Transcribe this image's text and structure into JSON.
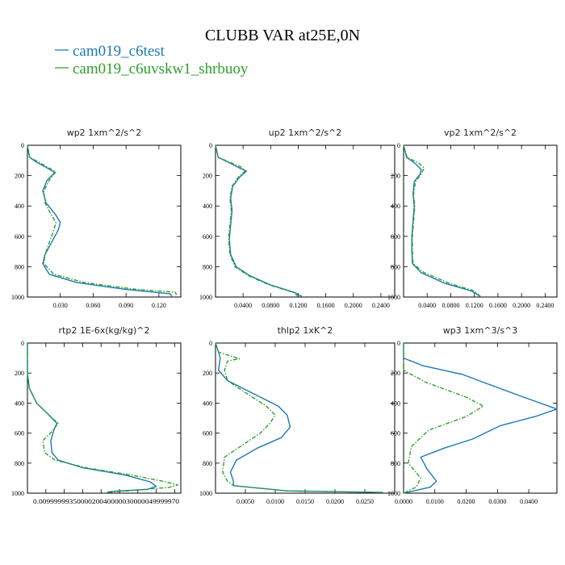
{
  "figure": {
    "title": "CLUBB VAR at25E,0N",
    "legend": [
      {
        "label": "cam019_c6test",
        "color": "#1f77b4",
        "dash": "solid"
      },
      {
        "label": "cam019_c6uvskw1_shrbuoy",
        "color": "#2ca02c",
        "dash": "dashdot"
      }
    ]
  },
  "chart_data": [
    {
      "type": "line",
      "title": "wp2  1xm^2/s^2",
      "ylim": [
        1000,
        0
      ],
      "yticks": [
        0,
        200,
        400,
        600,
        800,
        1000
      ],
      "xlim": [
        0,
        0.14
      ],
      "xticks": [
        0.03,
        0.06,
        0.09,
        0.12
      ],
      "xtick_labels": [
        "0.030",
        "0.060",
        "0.090",
        "0.120"
      ],
      "series": [
        {
          "name": "cam019_c6test",
          "color": "#1f77b4",
          "points": [
            [
              0.0,
              0
            ],
            [
              0.002,
              80
            ],
            [
              0.008,
              110
            ],
            [
              0.018,
              150
            ],
            [
              0.025,
              180
            ],
            [
              0.018,
              230
            ],
            [
              0.014,
              300
            ],
            [
              0.017,
              380
            ],
            [
              0.026,
              460
            ],
            [
              0.03,
              510
            ],
            [
              0.028,
              560
            ],
            [
              0.022,
              640
            ],
            [
              0.016,
              720
            ],
            [
              0.014,
              780
            ],
            [
              0.02,
              850
            ],
            [
              0.045,
              905
            ],
            [
              0.09,
              950
            ],
            [
              0.13,
              978
            ],
            [
              0.132,
              995
            ]
          ]
        },
        {
          "name": "cam019_c6uvskw1_shrbuoy",
          "color": "#2ca02c",
          "points": [
            [
              0.0,
              0
            ],
            [
              0.002,
              80
            ],
            [
              0.01,
              110
            ],
            [
              0.02,
              150
            ],
            [
              0.026,
              175
            ],
            [
              0.02,
              230
            ],
            [
              0.015,
              300
            ],
            [
              0.016,
              380
            ],
            [
              0.022,
              460
            ],
            [
              0.026,
              510
            ],
            [
              0.024,
              560
            ],
            [
              0.02,
              640
            ],
            [
              0.016,
              720
            ],
            [
              0.015,
              780
            ],
            [
              0.024,
              850
            ],
            [
              0.052,
              905
            ],
            [
              0.1,
              950
            ],
            [
              0.135,
              968
            ],
            [
              0.136,
              985
            ]
          ]
        }
      ]
    },
    {
      "type": "line",
      "title": "up2  1xm^2/s^2",
      "ylim": [
        1000,
        0
      ],
      "yticks": [
        0,
        200,
        400,
        600,
        800,
        1000
      ],
      "xlim": [
        0,
        0.26
      ],
      "xticks": [
        0.04,
        0.08,
        0.12,
        0.16,
        0.2,
        0.24
      ],
      "xtick_labels": [
        "0.0400",
        "0.0800",
        "0.1200",
        "0.1600",
        "0.2000",
        "0.2400"
      ],
      "series": [
        {
          "name": "cam019_c6test",
          "color": "#1f77b4",
          "points": [
            [
              0.0,
              0
            ],
            [
              0.004,
              80
            ],
            [
              0.02,
              115
            ],
            [
              0.035,
              150
            ],
            [
              0.045,
              170
            ],
            [
              0.035,
              210
            ],
            [
              0.025,
              270
            ],
            [
              0.022,
              350
            ],
            [
              0.024,
              430
            ],
            [
              0.022,
              520
            ],
            [
              0.02,
              620
            ],
            [
              0.022,
              720
            ],
            [
              0.03,
              800
            ],
            [
              0.05,
              860
            ],
            [
              0.08,
              920
            ],
            [
              0.115,
              970
            ],
            [
              0.125,
              995
            ]
          ]
        },
        {
          "name": "cam019_c6uvskw1_shrbuoy",
          "color": "#2ca02c",
          "points": [
            [
              0.0,
              0
            ],
            [
              0.004,
              80
            ],
            [
              0.02,
              110
            ],
            [
              0.038,
              145
            ],
            [
              0.043,
              170
            ],
            [
              0.033,
              210
            ],
            [
              0.024,
              270
            ],
            [
              0.021,
              350
            ],
            [
              0.023,
              430
            ],
            [
              0.021,
              520
            ],
            [
              0.019,
              620
            ],
            [
              0.021,
              720
            ],
            [
              0.028,
              800
            ],
            [
              0.048,
              860
            ],
            [
              0.078,
              920
            ],
            [
              0.113,
              970
            ],
            [
              0.12,
              995
            ]
          ]
        }
      ]
    },
    {
      "type": "line",
      "title": "vp2  1xm^2/s^2",
      "ylim": [
        1000,
        0
      ],
      "yticks": [
        0,
        200,
        400,
        600,
        800,
        1000
      ],
      "xlim": [
        0,
        0.26
      ],
      "xticks": [
        0.04,
        0.08,
        0.12,
        0.16,
        0.2,
        0.24
      ],
      "xtick_labels": [
        "0.0400",
        "0.0800",
        "0.1200",
        "0.1600",
        "0.2000",
        "0.2400"
      ],
      "series": [
        {
          "name": "cam019_c6test",
          "color": "#1f77b4",
          "points": [
            [
              0.0,
              0
            ],
            [
              0.005,
              80
            ],
            [
              0.02,
              120
            ],
            [
              0.03,
              160
            ],
            [
              0.028,
              190
            ],
            [
              0.018,
              240
            ],
            [
              0.016,
              320
            ],
            [
              0.018,
              400
            ],
            [
              0.016,
              500
            ],
            [
              0.014,
              600
            ],
            [
              0.014,
              700
            ],
            [
              0.015,
              780
            ],
            [
              0.03,
              840
            ],
            [
              0.07,
              910
            ],
            [
              0.115,
              960
            ],
            [
              0.13,
              995
            ]
          ]
        },
        {
          "name": "cam019_c6uvskw1_shrbuoy",
          "color": "#2ca02c",
          "points": [
            [
              0.0,
              0
            ],
            [
              0.006,
              80
            ],
            [
              0.025,
              115
            ],
            [
              0.035,
              150
            ],
            [
              0.03,
              190
            ],
            [
              0.02,
              240
            ],
            [
              0.017,
              320
            ],
            [
              0.019,
              400
            ],
            [
              0.017,
              500
            ],
            [
              0.015,
              600
            ],
            [
              0.015,
              700
            ],
            [
              0.016,
              780
            ],
            [
              0.035,
              840
            ],
            [
              0.078,
              910
            ],
            [
              0.12,
              960
            ],
            [
              0.13,
              995
            ]
          ]
        }
      ]
    },
    {
      "type": "line",
      "title": "rtp2  1E-6x(kg/kg)^2",
      "ylim": [
        1000,
        0
      ],
      "yticks": [
        0,
        200,
        400,
        600,
        800,
        1000
      ],
      "xlim": [
        0,
        25
      ],
      "xticks": [
        3,
        6,
        9,
        12,
        15,
        18,
        21,
        24
      ],
      "xtick_labels": [
        "0.00999999",
        "0.0000003",
        "0.0000002",
        "0.0000002",
        "0.0000002",
        "0.00000003",
        "0.00000003",
        "0.0000003"
      ],
      "tick_label_text": "0.0099999935000020040000030000049999970",
      "series": [
        {
          "name": "cam019_c6test",
          "color": "#1f77b4",
          "points": [
            [
              0.0,
              0
            ],
            [
              0.0,
              200
            ],
            [
              0.3,
              300
            ],
            [
              1.5,
              400
            ],
            [
              3.5,
              480
            ],
            [
              4.8,
              535
            ],
            [
              4.3,
              580
            ],
            [
              3.8,
              650
            ],
            [
              4.0,
              730
            ],
            [
              5.0,
              780
            ],
            [
              9.0,
              830
            ],
            [
              16.0,
              880
            ],
            [
              20.0,
              925
            ],
            [
              21.0,
              955
            ],
            [
              19.5,
              975
            ],
            [
              15.0,
              985
            ],
            [
              13.5,
              990
            ],
            [
              13.0,
              995
            ]
          ]
        },
        {
          "name": "cam019_c6uvskw1_shrbuoy",
          "color": "#2ca02c",
          "points": [
            [
              0.0,
              0
            ],
            [
              0.0,
              200
            ],
            [
              0.3,
              300
            ],
            [
              1.5,
              400
            ],
            [
              3.5,
              480
            ],
            [
              5.0,
              535
            ],
            [
              4.0,
              590
            ],
            [
              2.5,
              650
            ],
            [
              2.8,
              730
            ],
            [
              4.5,
              780
            ],
            [
              9.5,
              830
            ],
            [
              17.0,
              880
            ],
            [
              22.0,
              920
            ],
            [
              24.5,
              945
            ],
            [
              23.0,
              962
            ],
            [
              19.0,
              975
            ],
            [
              16.5,
              985
            ],
            [
              13.0,
              995
            ]
          ]
        }
      ]
    },
    {
      "type": "line",
      "title": "thlp2  1xK^2",
      "ylim": [
        1000,
        0
      ],
      "yticks": [
        0,
        200,
        400,
        600,
        800,
        1000
      ],
      "xlim": [
        0,
        0.03
      ],
      "xticks": [
        0.005,
        0.01,
        0.015,
        0.02,
        0.025
      ],
      "xtick_labels": [
        "0.0050",
        "0.0100",
        "0.0150",
        "0.0200",
        "0.0250"
      ],
      "series": [
        {
          "name": "cam019_c6test",
          "color": "#1f77b4",
          "points": [
            [
              0.0,
              0
            ],
            [
              0.0005,
              60
            ],
            [
              0.0008,
              100
            ],
            [
              0.0005,
              180
            ],
            [
              0.002,
              250
            ],
            [
              0.006,
              330
            ],
            [
              0.0105,
              420
            ],
            [
              0.012,
              480
            ],
            [
              0.0125,
              560
            ],
            [
              0.011,
              630
            ],
            [
              0.007,
              700
            ],
            [
              0.0035,
              780
            ],
            [
              0.0025,
              860
            ],
            [
              0.003,
              920
            ],
            [
              0.003,
              950
            ],
            [
              0.012,
              985
            ],
            [
              0.028,
              995
            ]
          ]
        },
        {
          "name": "cam019_c6uvskw1_shrbuoy",
          "color": "#2ca02c",
          "points": [
            [
              0.0,
              0
            ],
            [
              0.0005,
              60
            ],
            [
              0.004,
              105
            ],
            [
              0.002,
              120
            ],
            [
              0.0015,
              180
            ],
            [
              0.002,
              250
            ],
            [
              0.005,
              330
            ],
            [
              0.0085,
              420
            ],
            [
              0.01,
              480
            ],
            [
              0.009,
              540
            ],
            [
              0.0075,
              600
            ],
            [
              0.0045,
              680
            ],
            [
              0.0015,
              760
            ],
            [
              0.0012,
              860
            ],
            [
              0.002,
              920
            ],
            [
              0.003,
              950
            ],
            [
              0.012,
              985
            ],
            [
              0.028,
              995
            ]
          ]
        }
      ]
    },
    {
      "type": "line",
      "title": "wp3  1xm^3/s^3",
      "ylim": [
        1000,
        0
      ],
      "yticks": [
        0,
        200,
        400,
        600,
        800,
        1000
      ],
      "xlim": [
        0,
        0.049
      ],
      "xticks": [
        0.0,
        0.01,
        0.02,
        0.03,
        0.04
      ],
      "xtick_labels": [
        "0.0000",
        "0.0100",
        "0.0200",
        "0.0300",
        "0.0400"
      ],
      "series": [
        {
          "name": "cam019_c6test",
          "color": "#1f77b4",
          "points": [
            [
              0.0,
              0
            ],
            [
              0.0,
              100
            ],
            [
              0.006,
              150
            ],
            [
              0.019,
              210
            ],
            [
              0.024,
              250
            ],
            [
              0.037,
              350
            ],
            [
              0.049,
              440
            ],
            [
              0.042,
              490
            ],
            [
              0.031,
              550
            ],
            [
              0.022,
              640
            ],
            [
              0.013,
              700
            ],
            [
              0.0055,
              760
            ],
            [
              0.0075,
              840
            ],
            [
              0.0105,
              920
            ],
            [
              0.0085,
              960
            ],
            [
              0.0,
              1000
            ]
          ]
        },
        {
          "name": "cam019_c6uvskw1_shrbuoy",
          "color": "#2ca02c",
          "points": [
            [
              0.0,
              0
            ],
            [
              0.0,
              180
            ],
            [
              0.007,
              260
            ],
            [
              0.02,
              360
            ],
            [
              0.0255,
              420
            ],
            [
              0.02,
              490
            ],
            [
              0.008,
              580
            ],
            [
              0.0025,
              690
            ],
            [
              0.0015,
              800
            ],
            [
              0.0055,
              900
            ],
            [
              0.004,
              960
            ],
            [
              0.0,
              1000
            ]
          ]
        }
      ]
    }
  ]
}
